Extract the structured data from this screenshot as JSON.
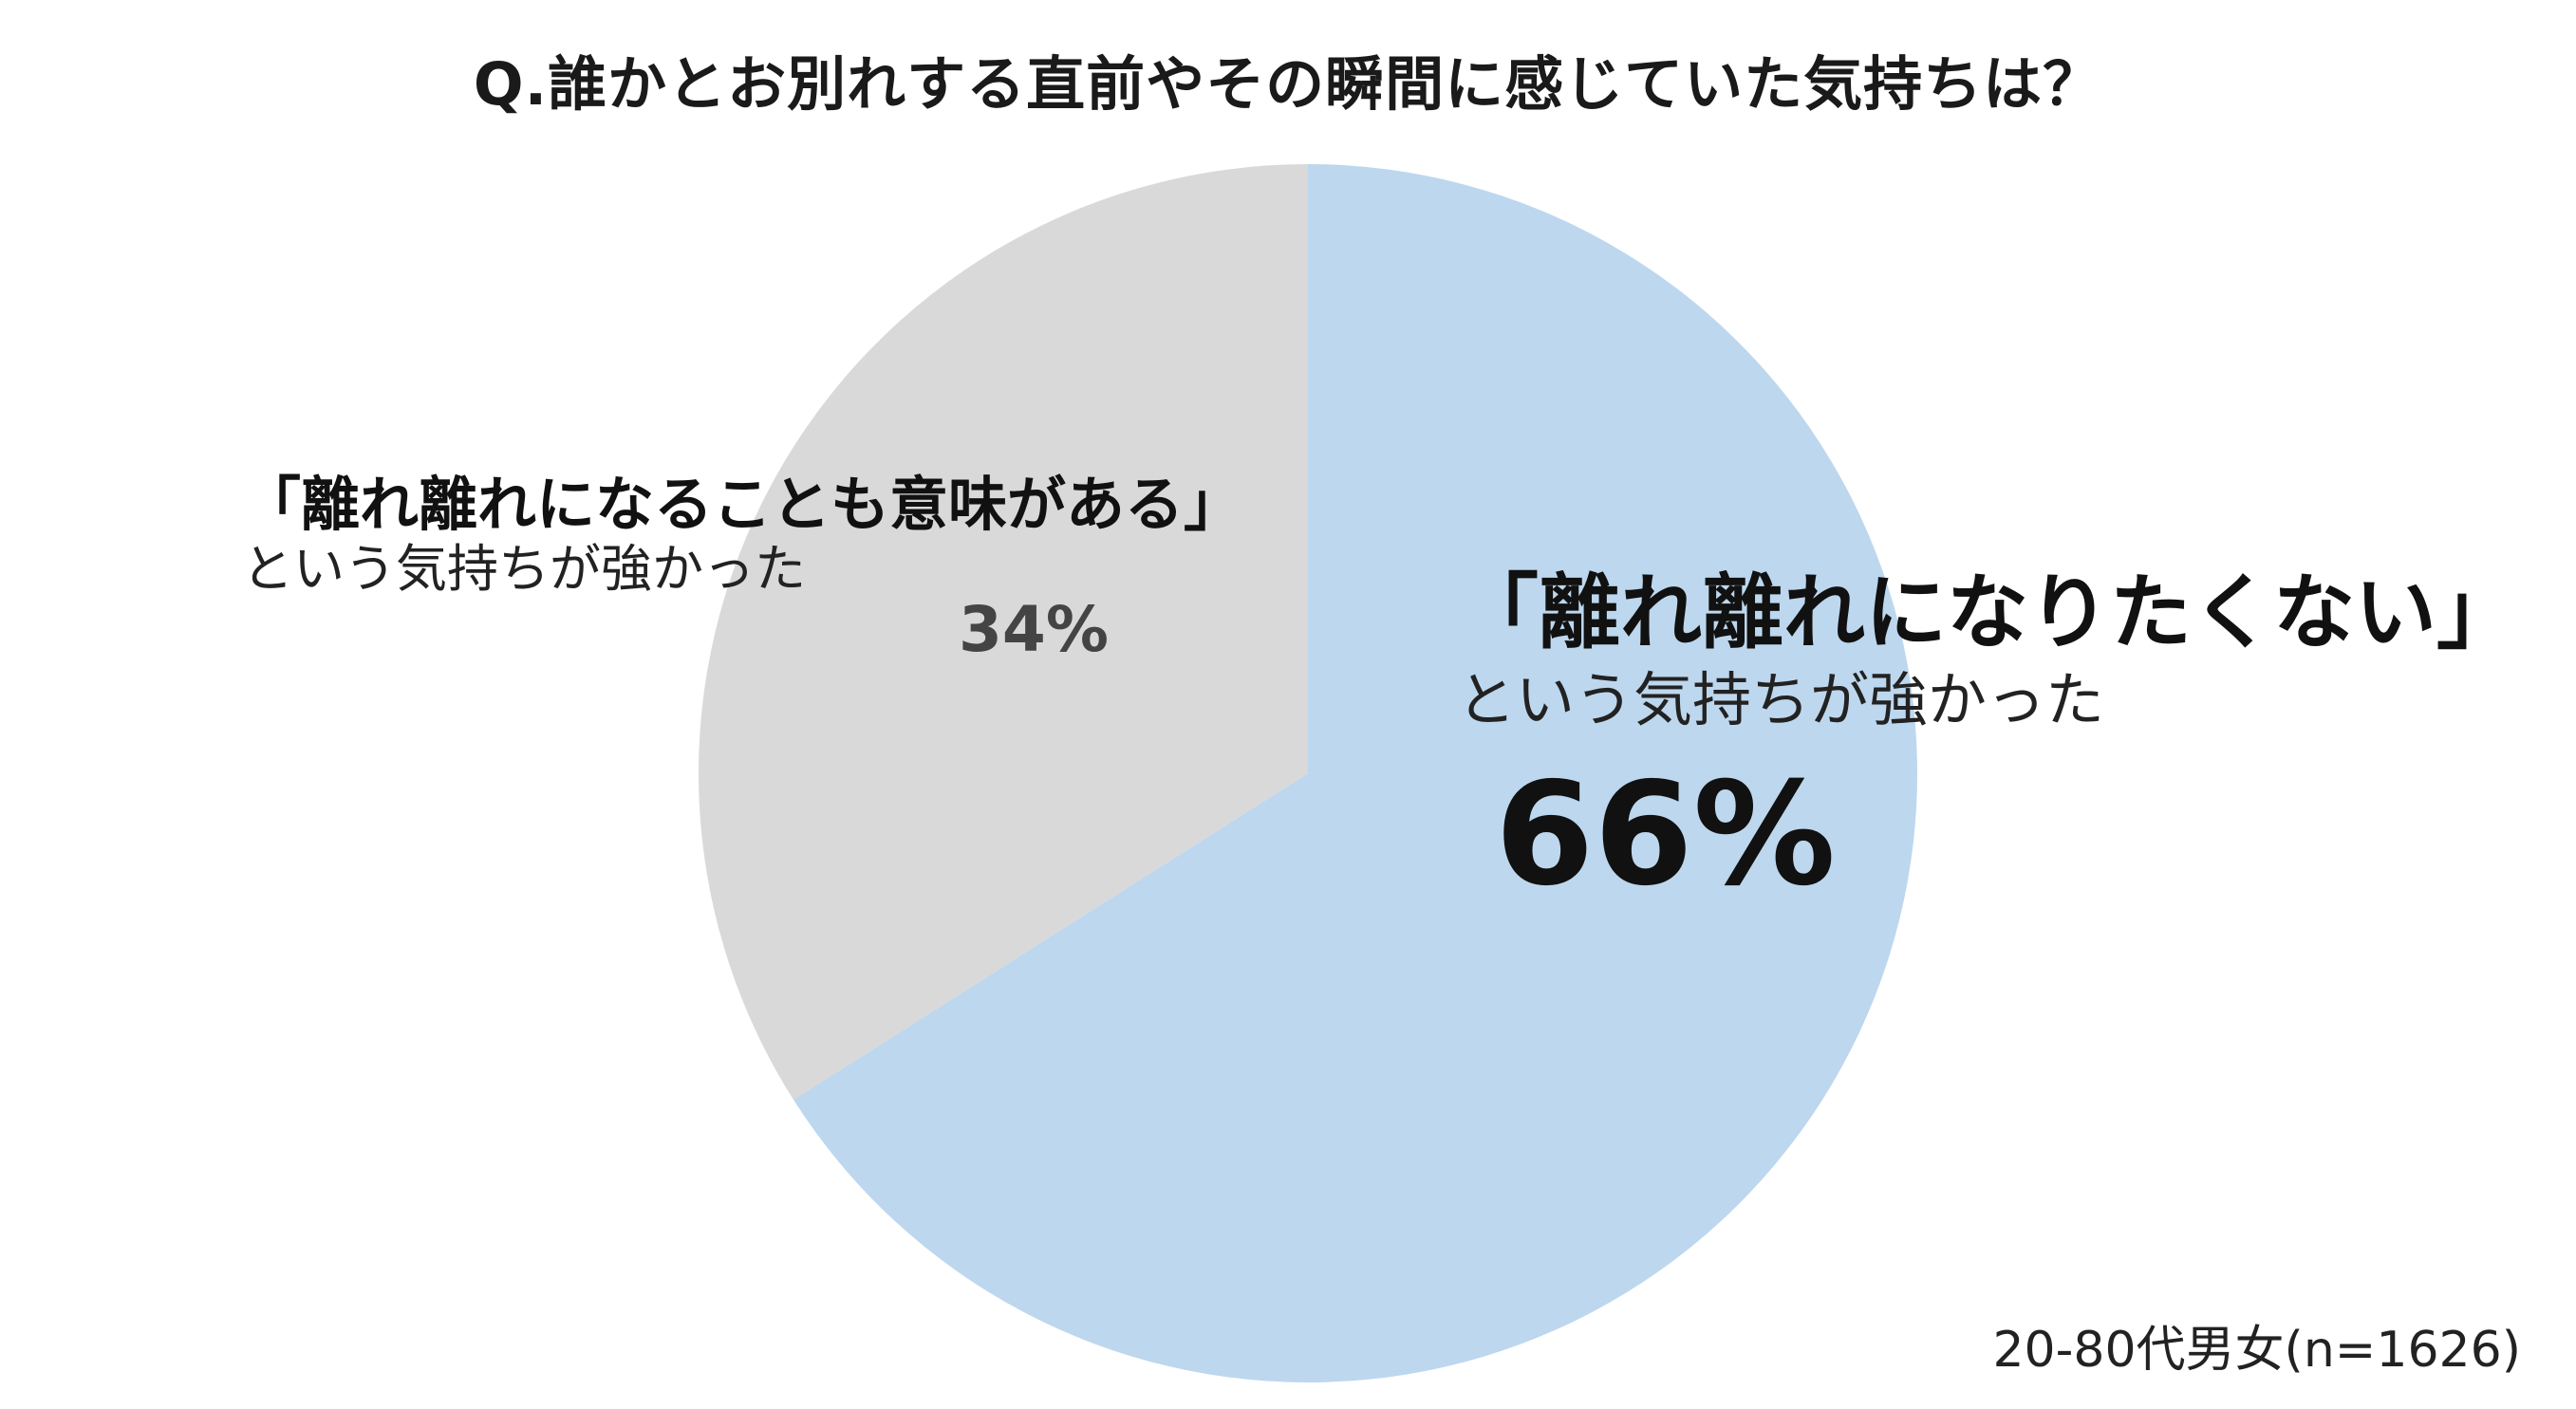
{
  "chart_data": {
    "type": "pie",
    "title": "Q.誰かとお別れする直前やその瞬間に感じていた気持ちは？",
    "slices": [
      {
        "label": "「離れ離れになりたくない」",
        "sublabel": "という気持ちが強かった",
        "value": 66,
        "value_label": "66%",
        "color": "#bdd7ee"
      },
      {
        "label": "「離れ離れになることも意味がある」",
        "sublabel": "という気持ちが強かった",
        "value": 34,
        "value_label": "34%",
        "color": "#d9d9d9"
      }
    ],
    "start_angle": "12 o'clock",
    "direction": "clockwise",
    "note": "20-80代男女(n=1626)"
  }
}
